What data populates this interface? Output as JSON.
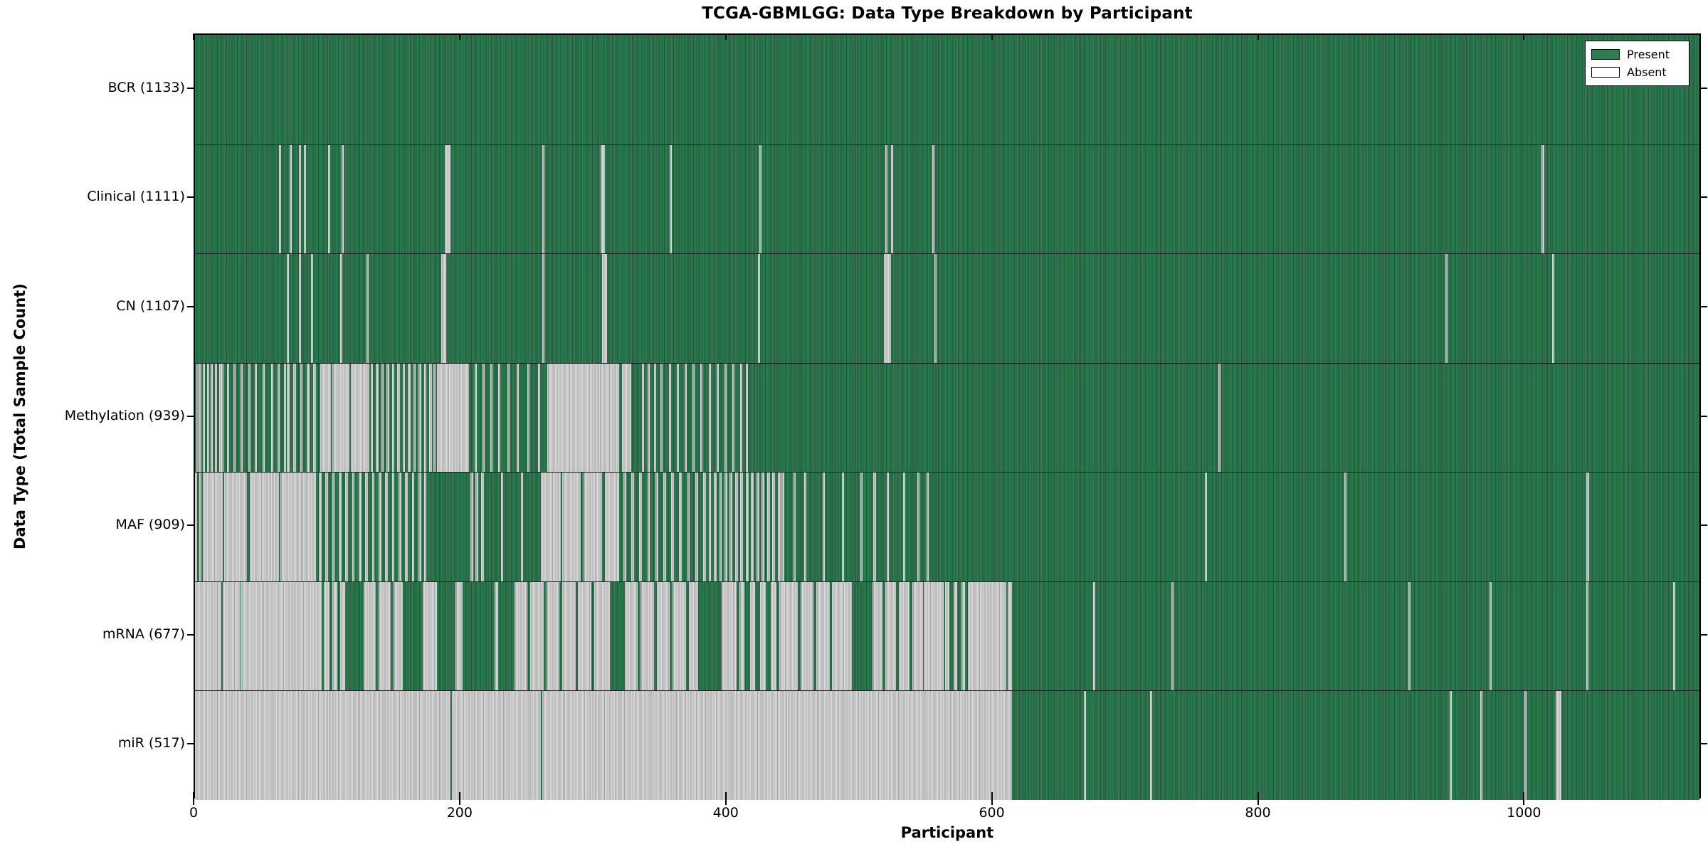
{
  "chart_data": {
    "type": "heatmap",
    "title": "TCGA-GBMLGG: Data Type Breakdown by Participant",
    "xlabel": "Participant",
    "ylabel": "Data Type (Total Sample Count)",
    "xlim": [
      0,
      1133
    ],
    "x_ticks": [
      0,
      200,
      400,
      600,
      800,
      1000
    ],
    "grid": false,
    "legend_position": "upper right",
    "legend": [
      {
        "label": "Present",
        "color": "#2e7d52"
      },
      {
        "label": "Absent",
        "color": "#ffffff"
      }
    ],
    "colors": {
      "present_fill": "#2e7d52",
      "present_edge": "#20593a",
      "absent_fill": "#d8d8d8",
      "absent_edge": "#a4a4a4",
      "axis": "#000000"
    },
    "rows": [
      {
        "label": "BCR (1133)",
        "total": 1133,
        "absent_runs": []
      },
      {
        "label": "Clinical (1111)",
        "total": 1111,
        "absent_runs": [
          [
            63,
            64
          ],
          [
            71,
            72
          ],
          [
            78,
            79
          ],
          [
            82,
            83
          ],
          [
            100,
            101
          ],
          [
            110,
            111
          ],
          [
            188,
            192
          ],
          [
            261,
            262
          ],
          [
            305,
            308
          ],
          [
            357,
            358
          ],
          [
            424,
            425
          ],
          [
            519,
            520
          ],
          [
            523,
            524
          ],
          [
            554,
            555
          ],
          [
            1012,
            1014
          ]
        ]
      },
      {
        "label": "CN (1107)",
        "total": 1107,
        "absent_runs": [
          [
            69,
            70
          ],
          [
            78,
            79
          ],
          [
            87,
            88
          ],
          [
            109,
            110
          ],
          [
            129,
            130
          ],
          [
            185,
            189
          ],
          [
            261,
            262
          ],
          [
            306,
            310
          ],
          [
            423,
            424
          ],
          [
            518,
            523
          ],
          [
            556,
            557
          ],
          [
            940,
            941
          ],
          [
            1020,
            1022
          ]
        ]
      },
      {
        "label": "Methylation (939)",
        "total": 939,
        "absent_runs": [
          [
            1,
            2
          ],
          [
            3,
            4
          ],
          [
            6,
            7
          ],
          [
            9,
            10
          ],
          [
            12,
            13
          ],
          [
            15,
            16
          ],
          [
            18,
            19
          ],
          [
            20,
            21
          ],
          [
            24,
            25
          ],
          [
            29,
            30
          ],
          [
            34,
            35
          ],
          [
            40,
            41
          ],
          [
            45,
            46
          ],
          [
            51,
            52
          ],
          [
            57,
            58
          ],
          [
            62,
            63
          ],
          [
            67,
            68
          ],
          [
            69,
            71
          ],
          [
            74,
            76
          ],
          [
            79,
            81
          ],
          [
            84,
            86
          ],
          [
            89,
            91
          ],
          [
            94,
            102
          ],
          [
            103,
            116
          ],
          [
            117,
            131
          ],
          [
            132,
            134
          ],
          [
            136,
            138
          ],
          [
            140,
            142
          ],
          [
            144,
            146
          ],
          [
            148,
            150
          ],
          [
            152,
            154
          ],
          [
            156,
            158
          ],
          [
            160,
            162
          ],
          [
            164,
            166
          ],
          [
            168,
            170
          ],
          [
            172,
            174
          ],
          [
            176,
            178
          ],
          [
            179,
            181
          ],
          [
            182,
            206
          ],
          [
            210,
            211
          ],
          [
            216,
            217
          ],
          [
            222,
            223
          ],
          [
            228,
            229
          ],
          [
            235,
            236
          ],
          [
            242,
            243
          ],
          [
            250,
            251
          ],
          [
            258,
            259
          ],
          [
            265,
            319
          ],
          [
            321,
            328
          ],
          [
            336,
            337
          ],
          [
            340,
            341
          ],
          [
            345,
            346
          ],
          [
            350,
            351
          ],
          [
            356,
            357
          ],
          [
            362,
            363
          ],
          [
            368,
            369
          ],
          [
            374,
            375
          ],
          [
            380,
            381
          ],
          [
            386,
            387
          ],
          [
            392,
            393
          ],
          [
            398,
            399
          ],
          [
            404,
            405
          ],
          [
            410,
            411
          ],
          [
            414,
            415
          ],
          [
            769,
            770
          ]
        ]
      },
      {
        "label": "MAF (909)",
        "total": 909,
        "absent_runs": [
          [
            0,
            1
          ],
          [
            3,
            4
          ],
          [
            6,
            21
          ],
          [
            22,
            39
          ],
          [
            41,
            63
          ],
          [
            64,
            91
          ],
          [
            93,
            95
          ],
          [
            98,
            100
          ],
          [
            103,
            105
          ],
          [
            108,
            110
          ],
          [
            113,
            115
          ],
          [
            118,
            120
          ],
          [
            123,
            125
          ],
          [
            128,
            130
          ],
          [
            133,
            135
          ],
          [
            138,
            140
          ],
          [
            143,
            145
          ],
          [
            148,
            150
          ],
          [
            153,
            155
          ],
          [
            158,
            160
          ],
          [
            163,
            165
          ],
          [
            168,
            170
          ],
          [
            172,
            174
          ],
          [
            207,
            209
          ],
          [
            211,
            213
          ],
          [
            215,
            217
          ],
          [
            230,
            231
          ],
          [
            245,
            246
          ],
          [
            260,
            275
          ],
          [
            276,
            290
          ],
          [
            292,
            306
          ],
          [
            308,
            319
          ],
          [
            322,
            324
          ],
          [
            328,
            330
          ],
          [
            334,
            336
          ],
          [
            340,
            342
          ],
          [
            346,
            348
          ],
          [
            352,
            354
          ],
          [
            358,
            360
          ],
          [
            364,
            366
          ],
          [
            370,
            372
          ],
          [
            376,
            378
          ],
          [
            382,
            384
          ],
          [
            386,
            388
          ],
          [
            390,
            392
          ],
          [
            394,
            396
          ],
          [
            398,
            400
          ],
          [
            402,
            404
          ],
          [
            406,
            408
          ],
          [
            410,
            412
          ],
          [
            414,
            416
          ],
          [
            418,
            420
          ],
          [
            422,
            424
          ],
          [
            426,
            428
          ],
          [
            430,
            432
          ],
          [
            434,
            436
          ],
          [
            438,
            440
          ],
          [
            441,
            443
          ],
          [
            450,
            451
          ],
          [
            458,
            459
          ],
          [
            472,
            473
          ],
          [
            486,
            487
          ],
          [
            500,
            501
          ],
          [
            510,
            512
          ],
          [
            520,
            521
          ],
          [
            532,
            533
          ],
          [
            543,
            544
          ],
          [
            550,
            551
          ],
          [
            759,
            760
          ],
          [
            864,
            865
          ],
          [
            1046,
            1048
          ]
        ]
      },
      {
        "label": "mRNA (677)",
        "total": 677,
        "absent_runs": [
          [
            0,
            20
          ],
          [
            21,
            34
          ],
          [
            35,
            91
          ],
          [
            91,
            95
          ],
          [
            97,
            101
          ],
          [
            103,
            107
          ],
          [
            109,
            113
          ],
          [
            127,
            136
          ],
          [
            138,
            147
          ],
          [
            149,
            156
          ],
          [
            171,
            182
          ],
          [
            196,
            201
          ],
          [
            225,
            228
          ],
          [
            240,
            250
          ],
          [
            252,
            262
          ],
          [
            264,
            274
          ],
          [
            276,
            286
          ],
          [
            288,
            298
          ],
          [
            300,
            312
          ],
          [
            323,
            333
          ],
          [
            335,
            345
          ],
          [
            347,
            357
          ],
          [
            359,
            369
          ],
          [
            371,
            378
          ],
          [
            396,
            407
          ],
          [
            409,
            413
          ],
          [
            417,
            421
          ],
          [
            425,
            429
          ],
          [
            433,
            437
          ],
          [
            439,
            443
          ],
          [
            443,
            453
          ],
          [
            455,
            465
          ],
          [
            467,
            477
          ],
          [
            479,
            494
          ],
          [
            509,
            517
          ],
          [
            519,
            527
          ],
          [
            529,
            537
          ],
          [
            539,
            547
          ],
          [
            548,
            552
          ],
          [
            552,
            563
          ],
          [
            564,
            567
          ],
          [
            570,
            573
          ],
          [
            576,
            579
          ],
          [
            581,
            610
          ],
          [
            611,
            614
          ],
          [
            675,
            676
          ],
          [
            734,
            735
          ],
          [
            912,
            913
          ],
          [
            973,
            974
          ],
          [
            1046,
            1047
          ],
          [
            1111,
            1112
          ]
        ]
      },
      {
        "label": "miR (517)",
        "total": 517,
        "absent_runs": [
          [
            0,
            192
          ],
          [
            193,
            260
          ],
          [
            261,
            614
          ],
          [
            668,
            669
          ],
          [
            718,
            719
          ],
          [
            943,
            944
          ],
          [
            966,
            967
          ],
          [
            999,
            1000
          ],
          [
            1023,
            1027
          ]
        ]
      }
    ]
  }
}
